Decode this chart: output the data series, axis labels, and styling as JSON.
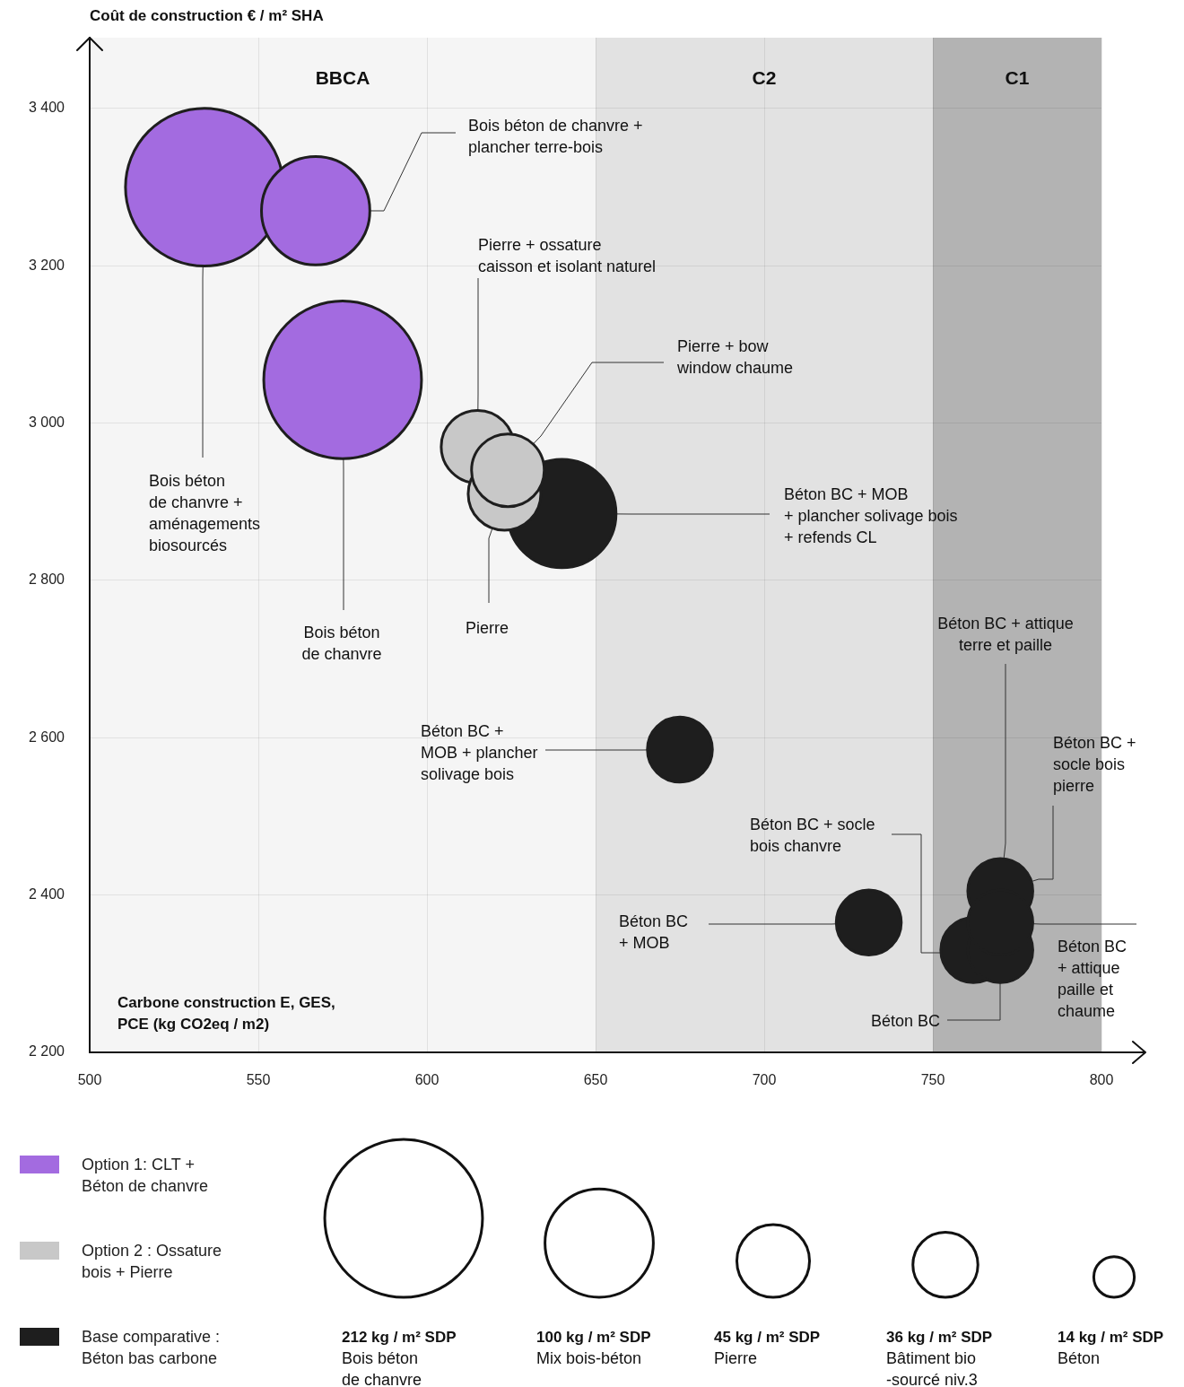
{
  "chart_data": {
    "type": "bubble",
    "ylabel": "Coût de construction € / m² SHA",
    "xlabel": "Carbone construction E, GES, PCE (kg CO2eq / m2)",
    "xlim": [
      500,
      800
    ],
    "ylim": [
      2200,
      3490
    ],
    "xticks": [
      500,
      550,
      600,
      650,
      700,
      750,
      800
    ],
    "yticks": [
      {
        "value": 2200,
        "label": "2 200"
      },
      {
        "value": 2400,
        "label": "2 400"
      },
      {
        "value": 2600,
        "label": "2 600"
      },
      {
        "value": 2800,
        "label": "2 800"
      },
      {
        "value": 3000,
        "label": "3 000"
      },
      {
        "value": 3200,
        "label": "3 200"
      },
      {
        "value": 3400,
        "label": "3 400"
      }
    ],
    "grid": true,
    "legend": "bottom left",
    "bands": [
      {
        "axis": "x",
        "from": 500,
        "to": 650,
        "label": "BBCA",
        "color": "#f5f5f5"
      },
      {
        "axis": "x",
        "from": 650,
        "to": 750,
        "label": "C2",
        "color": "#e2e2e2"
      },
      {
        "axis": "x",
        "from": 750,
        "to": 800,
        "label": "C1",
        "color": "#b3b3b3"
      }
    ],
    "size_legend": [
      {
        "value": 212,
        "label": "212 kg / m² SDP"
      },
      {
        "value": 100,
        "label": "100 kg / m² SDP"
      },
      {
        "value": 45,
        "label": "45 kg / m² SDP"
      },
      {
        "value": 36,
        "label": "36 kg / m² SDP"
      },
      {
        "value": 14,
        "label": "14 kg / m² SDP"
      }
    ],
    "series": [
      {
        "name": "Option 1: CLT + Béton de chanvre",
        "color": "#a36be0",
        "x": [
          534,
          567,
          575
        ],
        "values": [
          3300,
          3270,
          3055
        ],
        "sizes": [
          212,
          100,
          212
        ]
      },
      {
        "name": "Option 2 : Ossature bois + Pierre",
        "color": "#c8c8c8",
        "x": [
          615,
          623,
          624
        ],
        "values": [
          2970,
          2910,
          2940
        ],
        "sizes": [
          45,
          45,
          45
        ]
      },
      {
        "name": "Base comparative : Béton bas carbone",
        "color": "#1e1e1e",
        "x": [
          640,
          675,
          731,
          762,
          770,
          770,
          770
        ],
        "values": [
          2885,
          2585,
          2365,
          2330,
          2330,
          2405,
          2365
        ],
        "sizes": [
          100,
          36,
          36,
          36,
          36,
          36,
          36
        ]
      }
    ],
    "annotations": [
      {
        "text": "Bois béton de chanvre + aménagements biosourcés",
        "x": 534,
        "y": 3300
      },
      {
        "text": "Bois béton de chanvre + plancher terre-bois",
        "x": 567,
        "y": 3270
      },
      {
        "text": "Bois béton de chanvre",
        "x": 575,
        "y": 3055
      },
      {
        "text": "Pierre + ossature caisson et isolant naturel",
        "x": 615,
        "y": 2970
      },
      {
        "text": "Pierre + bow window chaume",
        "x": 624,
        "y": 2940
      },
      {
        "text": "Pierre",
        "x": 623,
        "y": 2910
      },
      {
        "text": "Béton BC + MOB + plancher solivage bois + refends CL",
        "x": 640,
        "y": 2885
      },
      {
        "text": "Béton BC + MOB + plancher solivage bois",
        "x": 675,
        "y": 2585
      },
      {
        "text": "Béton BC + MOB",
        "x": 731,
        "y": 2365
      },
      {
        "text": "Béton BC + socle bois chanvre",
        "x": 762,
        "y": 2330
      },
      {
        "text": "Béton BC + attique terre et paille",
        "x": 770,
        "y": 2405
      },
      {
        "text": "Béton BC + socle bois pierre",
        "x": 770,
        "y": 2405
      },
      {
        "text": "Béton BC + attique paille et chaume",
        "x": 770,
        "y": 2365
      },
      {
        "text": "Béton BC",
        "x": 770,
        "y": 2330
      },
      "Bois béton de chanvre",
      "Mix bois-béton",
      "Pierre",
      "Bâtiment bio -sourcé niv.3",
      "Béton"
    ]
  }
}
